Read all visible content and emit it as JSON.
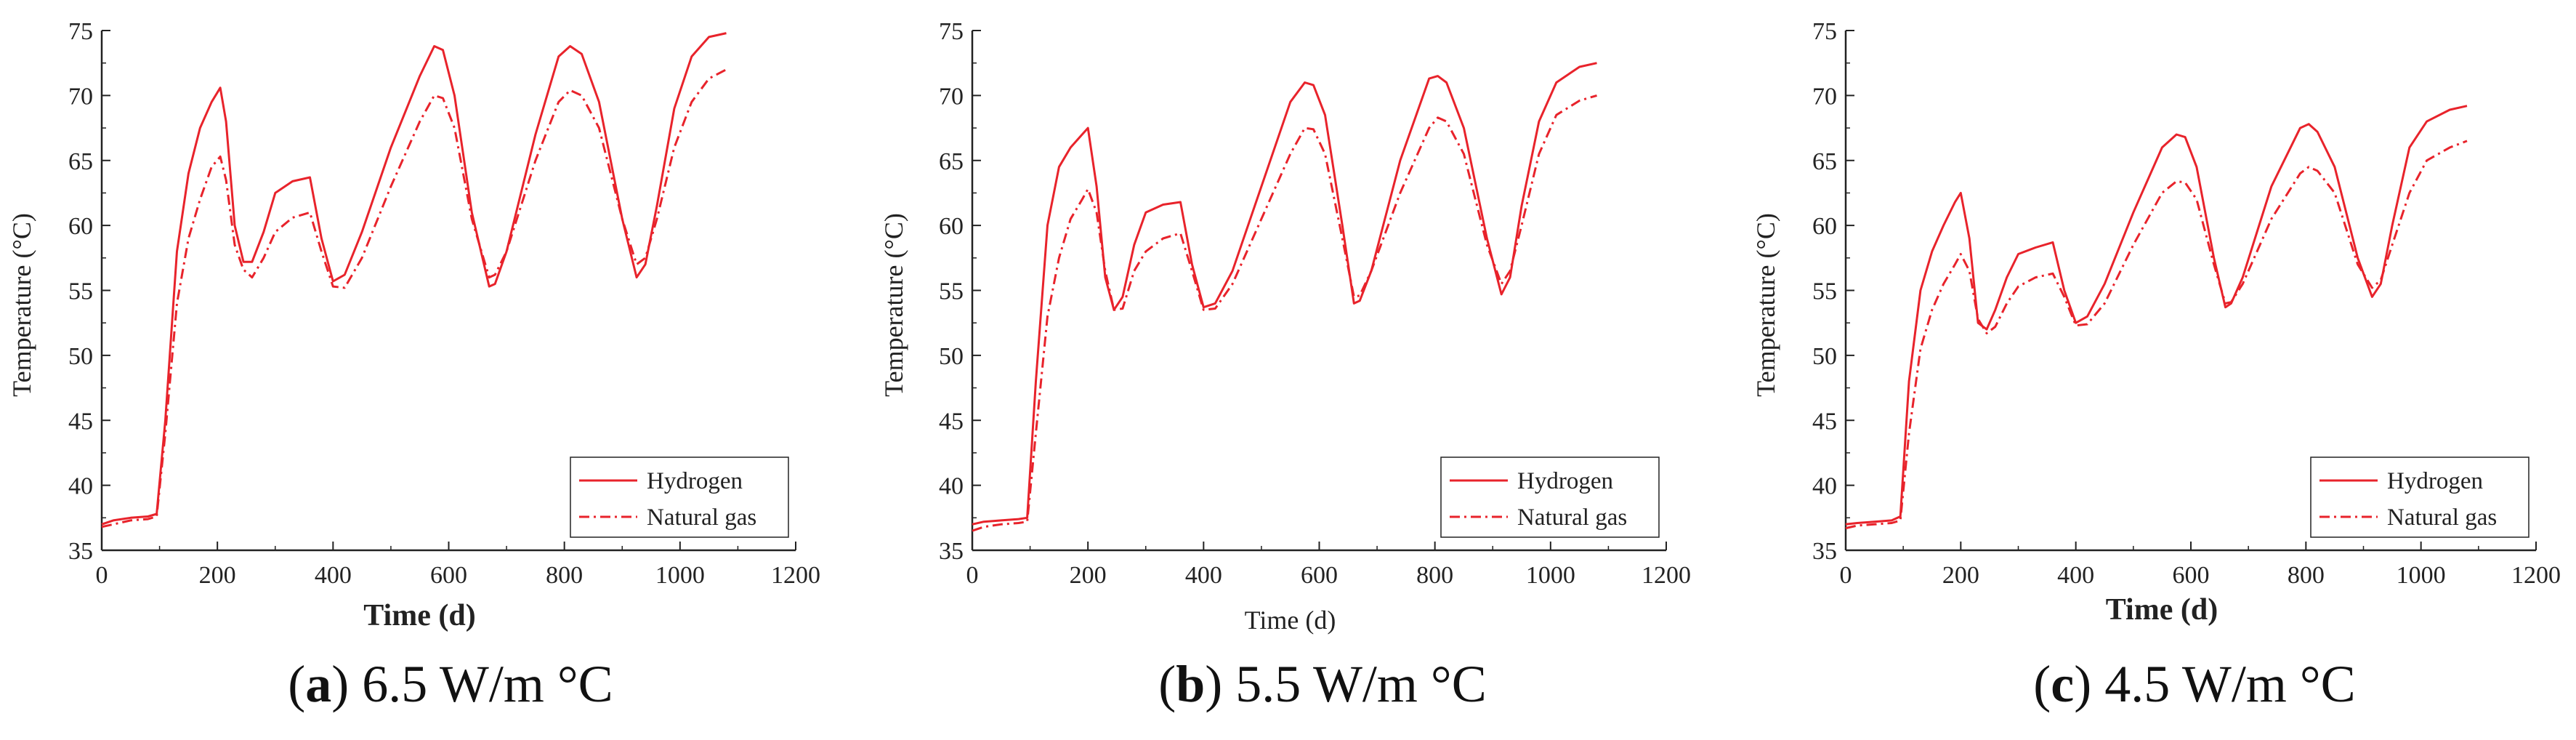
{
  "figure": {
    "captions": [
      {
        "letter": "a",
        "text": ") 6.5 W/m °C"
      },
      {
        "letter": "b",
        "text": ") 5.5 W/m °C"
      },
      {
        "letter": "c",
        "text": ") 4.5 W/m °C"
      }
    ],
    "colors": {
      "line": "#e8232b",
      "axis": "#222222"
    }
  },
  "chart_data": [
    {
      "type": "line",
      "panel": "a",
      "title": "",
      "xlabel": "Time (d)",
      "ylabel": "Temperature (°C)",
      "xlim": [
        0,
        1200
      ],
      "ylim": [
        35,
        75
      ],
      "xticks": [
        0,
        200,
        400,
        600,
        800,
        1000,
        1200
      ],
      "yticks": [
        35,
        40,
        45,
        50,
        55,
        60,
        65,
        70,
        75
      ],
      "legend_position": "bottom-right",
      "series": [
        {
          "name": "Hydrogen",
          "style": "solid",
          "x": [
            0,
            20,
            50,
            80,
            95,
            110,
            130,
            150,
            170,
            190,
            205,
            215,
            230,
            245,
            260,
            280,
            300,
            330,
            360,
            380,
            400,
            420,
            450,
            500,
            550,
            575,
            590,
            610,
            640,
            670,
            680,
            700,
            750,
            790,
            810,
            830,
            860,
            900,
            925,
            940,
            960,
            990,
            1020,
            1050,
            1080
          ],
          "y": [
            37,
            37.3,
            37.5,
            37.6,
            37.8,
            45,
            58,
            64,
            67.5,
            69.5,
            70.6,
            68,
            60,
            57.2,
            57.2,
            59.5,
            62.5,
            63.4,
            63.7,
            59,
            55.7,
            56.2,
            59.5,
            66,
            71.5,
            73.8,
            73.5,
            70,
            61,
            55.3,
            55.5,
            58,
            67,
            73,
            73.8,
            73.2,
            69.5,
            60.5,
            56,
            57,
            61.5,
            69,
            73,
            74.5,
            74.8
          ]
        },
        {
          "name": "Natural gas",
          "style": "dashdot",
          "x": [
            0,
            20,
            50,
            80,
            95,
            110,
            130,
            150,
            170,
            190,
            205,
            215,
            230,
            245,
            260,
            280,
            300,
            330,
            360,
            380,
            400,
            420,
            450,
            500,
            550,
            575,
            590,
            610,
            640,
            670,
            680,
            700,
            750,
            790,
            810,
            830,
            860,
            900,
            925,
            940,
            960,
            990,
            1020,
            1050,
            1080
          ],
          "y": [
            36.8,
            37,
            37.3,
            37.4,
            37.6,
            44,
            54,
            59,
            62,
            64.5,
            65.3,
            63.5,
            58.5,
            56.6,
            56,
            57.5,
            59.5,
            60.6,
            61,
            58,
            55.3,
            55.2,
            57.5,
            63,
            68,
            70,
            69.8,
            67.5,
            60.5,
            56,
            56.2,
            58,
            65,
            69.5,
            70.4,
            70,
            67.5,
            60.5,
            57,
            57.5,
            60.5,
            66,
            69.5,
            71.3,
            72
          ]
        }
      ]
    },
    {
      "type": "line",
      "panel": "b",
      "title": "",
      "xlabel": "Time (d)",
      "ylabel": "Temperature (°C)",
      "xlim": [
        0,
        1200
      ],
      "ylim": [
        35,
        75
      ],
      "xticks": [
        0,
        200,
        400,
        600,
        800,
        1000,
        1200
      ],
      "yticks": [
        35,
        40,
        45,
        50,
        55,
        60,
        65,
        70,
        75
      ],
      "legend_position": "bottom-right",
      "series": [
        {
          "name": "Hydrogen",
          "style": "solid",
          "x": [
            0,
            20,
            50,
            80,
            95,
            110,
            130,
            150,
            170,
            190,
            200,
            215,
            230,
            245,
            260,
            280,
            300,
            330,
            360,
            380,
            400,
            420,
            450,
            500,
            550,
            575,
            590,
            610,
            640,
            660,
            670,
            690,
            740,
            790,
            805,
            820,
            850,
            890,
            915,
            930,
            950,
            980,
            1010,
            1050,
            1080
          ],
          "y": [
            37,
            37.2,
            37.3,
            37.4,
            37.5,
            48,
            60,
            64.5,
            66,
            67,
            67.5,
            63,
            56,
            53.5,
            54.5,
            58.5,
            61,
            61.6,
            61.8,
            57,
            53.7,
            54,
            56.5,
            63,
            69.5,
            71,
            70.8,
            68.5,
            60,
            54,
            54.2,
            56.5,
            65,
            71.3,
            71.5,
            71,
            67.5,
            59,
            54.7,
            56,
            61.5,
            68,
            71,
            72.2,
            72.5
          ]
        },
        {
          "name": "Natural gas",
          "style": "dashdot",
          "x": [
            0,
            20,
            50,
            80,
            95,
            110,
            130,
            150,
            170,
            190,
            200,
            215,
            230,
            245,
            260,
            280,
            300,
            330,
            360,
            380,
            400,
            420,
            450,
            500,
            550,
            575,
            590,
            610,
            640,
            660,
            670,
            690,
            740,
            790,
            805,
            820,
            850,
            890,
            915,
            930,
            950,
            980,
            1010,
            1050,
            1080
          ],
          "y": [
            36.5,
            36.8,
            37,
            37.1,
            37.2,
            44,
            53,
            57.5,
            60.5,
            62,
            62.8,
            61,
            56.5,
            53.5,
            53.6,
            56.5,
            58,
            59,
            59.4,
            56.5,
            53.5,
            53.6,
            55.5,
            60.5,
            65.5,
            67.5,
            67.4,
            65.5,
            59,
            54.5,
            54.6,
            56.5,
            62.5,
            67.5,
            68.3,
            68,
            65.5,
            58.5,
            55.5,
            56.5,
            60,
            65.5,
            68.5,
            69.6,
            70
          ]
        }
      ]
    },
    {
      "type": "line",
      "panel": "c",
      "title": "",
      "xlabel": "Time (d)",
      "ylabel": "Temperature (°C)",
      "xlim": [
        0,
        1200
      ],
      "ylim": [
        35,
        75
      ],
      "xticks": [
        0,
        200,
        400,
        600,
        800,
        1000,
        1200
      ],
      "yticks": [
        35,
        40,
        45,
        50,
        55,
        60,
        65,
        70,
        75
      ],
      "legend_position": "bottom-right",
      "series": [
        {
          "name": "Hydrogen",
          "style": "solid",
          "x": [
            0,
            20,
            50,
            80,
            95,
            110,
            130,
            150,
            170,
            190,
            200,
            215,
            230,
            245,
            260,
            280,
            300,
            330,
            360,
            380,
            400,
            420,
            450,
            500,
            550,
            575,
            590,
            610,
            640,
            660,
            670,
            690,
            740,
            790,
            805,
            820,
            850,
            890,
            915,
            930,
            950,
            980,
            1010,
            1050,
            1080
          ],
          "y": [
            37,
            37.1,
            37.2,
            37.3,
            37.6,
            48,
            55,
            58,
            60,
            61.8,
            62.5,
            59,
            52.5,
            52,
            53.5,
            56,
            57.8,
            58.3,
            58.7,
            55,
            52.5,
            53,
            55.5,
            61,
            66,
            67,
            66.8,
            64.5,
            57.5,
            53.7,
            54,
            56,
            63,
            67.5,
            67.8,
            67.2,
            64.5,
            57.5,
            54.5,
            55.5,
            60,
            66,
            68,
            68.9,
            69.2
          ]
        },
        {
          "name": "Natural gas",
          "style": "dashdot",
          "x": [
            0,
            20,
            50,
            80,
            95,
            110,
            130,
            150,
            170,
            190,
            200,
            215,
            230,
            245,
            260,
            280,
            300,
            330,
            360,
            380,
            400,
            420,
            450,
            500,
            550,
            575,
            590,
            610,
            640,
            660,
            670,
            690,
            740,
            790,
            805,
            820,
            850,
            890,
            915,
            930,
            950,
            980,
            1010,
            1050,
            1080
          ],
          "y": [
            36.7,
            36.9,
            37,
            37.1,
            37.3,
            44,
            50.5,
            53.5,
            55.5,
            57,
            57.8,
            56.5,
            52.8,
            51.7,
            52.2,
            54,
            55.3,
            56,
            56.3,
            54.5,
            52.3,
            52.4,
            54,
            58.5,
            62.5,
            63.4,
            63.3,
            62,
            57,
            54,
            54.1,
            55.5,
            60.5,
            64,
            64.5,
            64.2,
            62.5,
            57,
            55.2,
            55.8,
            58.5,
            62.5,
            65,
            66,
            66.5
          ]
        }
      ]
    }
  ]
}
